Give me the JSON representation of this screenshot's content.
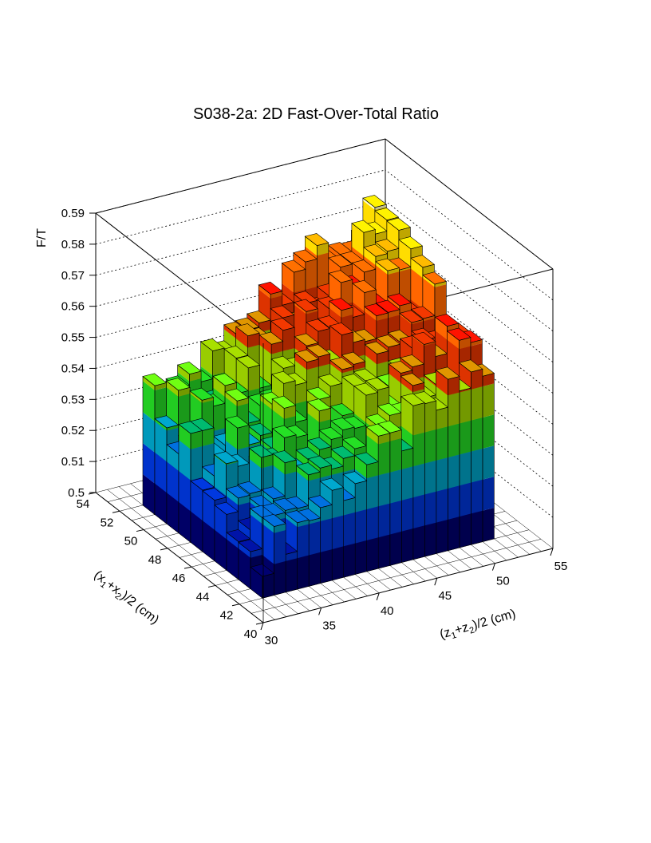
{
  "chart_data": {
    "type": "lego3d",
    "title": "S038-2a: 2D Fast-Over-Total Ratio",
    "xlabel": "(z1+z2)/2 (cm)",
    "ylabel": "(x1+x2)/2 (cm)",
    "zlabel": "F/T",
    "xlim": [
      30,
      55
    ],
    "ylim": [
      40,
      54
    ],
    "zlim": [
      0.5,
      0.59
    ],
    "x_ticks": [
      "30",
      "35",
      "40",
      "45",
      "50",
      "55"
    ],
    "y_ticks": [
      "40",
      "42",
      "44",
      "46",
      "48",
      "50",
      "52",
      "54"
    ],
    "z_ticks": [
      "0.5",
      "0.51",
      "0.52",
      "0.53",
      "0.54",
      "0.55",
      "0.56",
      "0.57",
      "0.58",
      "0.59"
    ],
    "x_bin_centers": [
      32.5,
      33.5,
      34.5,
      35.5,
      36.5,
      37.5,
      38.5,
      39.5,
      40.5,
      41.5,
      42.5,
      43.5,
      44.5,
      45.5,
      46.5,
      47.5,
      48.5,
      49.5,
      50.5,
      51.5
    ],
    "y_bin_centers": [
      42.5,
      43.5,
      44.5,
      45.5,
      46.5,
      47.5,
      48.5,
      49.5,
      50.5,
      51.5
    ],
    "grid": true,
    "palette": [
      "#000033",
      "#000066",
      "#001199",
      "#0033cc",
      "#0066cc",
      "#0099bb",
      "#00aa66",
      "#22cc22",
      "#66ee11",
      "#99cc00",
      "#cc8800",
      "#dd3300",
      "#ff1100",
      "#ff6600",
      "#ffaa00",
      "#ffdd00",
      "#ffff66",
      "#ffffcc"
    ]
  }
}
